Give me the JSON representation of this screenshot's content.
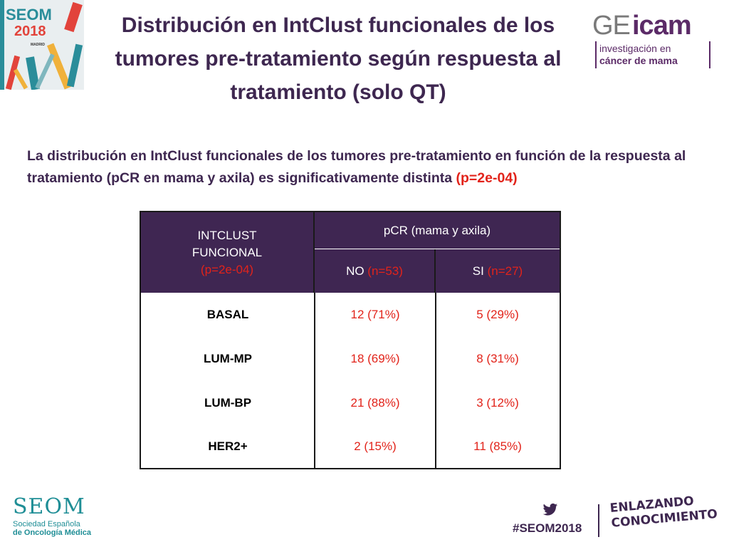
{
  "title": "Distribución en IntClust funcionales de los tumores pre-tratamiento según respuesta al tratamiento (solo QT)",
  "summary": {
    "text": "La distribución en IntClust funcionales de los tumores pre-tratamiento en función de la respuesta al tratamiento (pCR en mama y axila) es significativamente distinta",
    "pvalue": "(p=2e-04)"
  },
  "logos": {
    "seom_year_brand": "SEOM",
    "seom_year": "2018",
    "seom_city": "MADRID",
    "geicam_ge": "GE",
    "geicam_icam": "icam",
    "geicam_line1": "investigación en",
    "geicam_line2": "cáncer de mama",
    "seom_footer_title": "SEOM",
    "seom_footer_line1": "Sociedad  Española",
    "seom_footer_line2": "de Oncología Médica",
    "hashtag": "#SEOM2018",
    "slogan_line1": "ENLAZANDO",
    "slogan_line2": "CONOCIMIENTO"
  },
  "table": {
    "header_col1_line1": "INTCLUST",
    "header_col1_line2": "FUNCIONAL",
    "header_col1_pvalue": "(p=2e-04)",
    "header_group": "pCR (mama y axila)",
    "header_no_label": "NO",
    "header_no_n": "(n=53)",
    "header_si_label": "SI",
    "header_si_n": "(n=27)",
    "rows": [
      {
        "label": "BASAL",
        "no": "12 (71%)",
        "si": "5 (29%)"
      },
      {
        "label": "LUM-MP",
        "no": "18 (69%)",
        "si": "8 (31%)"
      },
      {
        "label": "LUM-BP",
        "no": "21 (88%)",
        "si": "3 (12%)"
      },
      {
        "label": "HER2+",
        "no": "2 (15%)",
        "si": "11 (85%)"
      }
    ]
  },
  "colors": {
    "title": "#3e2750",
    "header_bg": "#3f2652",
    "accent_red": "#e2231a",
    "seom_teal": "#1f8e96"
  }
}
